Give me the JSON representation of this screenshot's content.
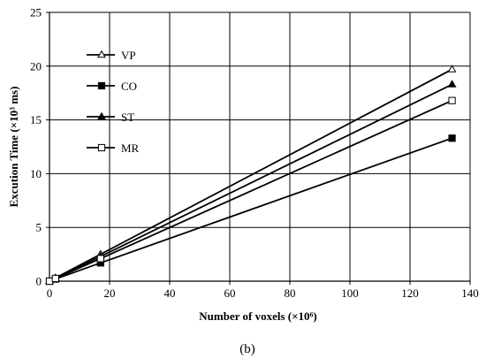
{
  "chart_data": {
    "type": "line",
    "xlabel": "Number of voxels (×10⁶)",
    "ylabel": "Excution Time (×10³ ms)",
    "xlim": [
      0,
      140
    ],
    "ylim": [
      0,
      25
    ],
    "xticks": [
      0,
      20,
      40,
      60,
      80,
      100,
      120,
      140
    ],
    "yticks": [
      0,
      5,
      10,
      15,
      20,
      25
    ],
    "grid": true,
    "legend_position": "top-left",
    "series": [
      {
        "name": "VP",
        "marker": "open-triangle",
        "x": [
          0,
          2,
          17,
          134
        ],
        "y": [
          0,
          0.3,
          2.5,
          19.7
        ]
      },
      {
        "name": "CO",
        "marker": "filled-square",
        "x": [
          0,
          2,
          17,
          134
        ],
        "y": [
          0,
          0.2,
          1.7,
          13.3
        ]
      },
      {
        "name": "ST",
        "marker": "filled-triangle",
        "x": [
          0,
          2,
          17,
          134
        ],
        "y": [
          0,
          0.3,
          2.3,
          18.3
        ]
      },
      {
        "name": "MR",
        "marker": "open-square",
        "x": [
          0,
          2,
          17,
          134
        ],
        "y": [
          0,
          0.25,
          2.1,
          16.8
        ]
      }
    ]
  },
  "caption": "(b)"
}
